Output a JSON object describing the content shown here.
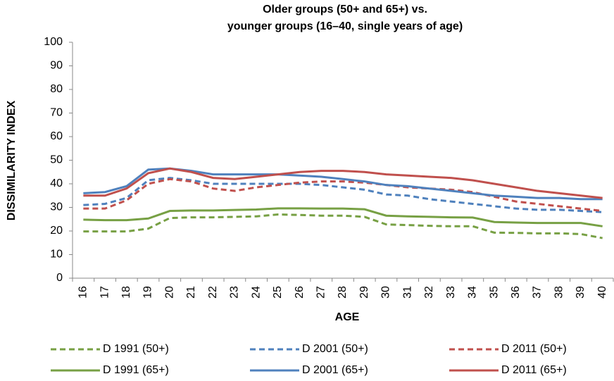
{
  "chart_data": {
    "type": "line",
    "title": [
      "Older groups (50+ and 65+) vs.",
      "younger groups (16–40, single years of age)"
    ],
    "xlabel": "AGE",
    "ylabel": "DISSIMILARITY INDEX",
    "categories": [
      "16",
      "17",
      "18",
      "19",
      "20",
      "21",
      "22",
      "23",
      "24",
      "25",
      "26",
      "27",
      "28",
      "29",
      "30",
      "31",
      "32",
      "33",
      "34",
      "35",
      "36",
      "37",
      "38",
      "39",
      "40"
    ],
    "ylim": [
      0,
      100
    ],
    "yticks": [
      0,
      10,
      20,
      30,
      40,
      50,
      60,
      70,
      80,
      90,
      100
    ],
    "grid": false,
    "series": [
      {
        "name": "D 1991 (50+)",
        "color": "#77a044",
        "dashed": true,
        "values": [
          19.8,
          19.8,
          19.8,
          21,
          25.5,
          25.8,
          25.8,
          26,
          26.2,
          27,
          26.8,
          26.5,
          26.5,
          26,
          22.8,
          22.5,
          22.2,
          22,
          22,
          19.3,
          19.2,
          19,
          19,
          18.7,
          17
        ]
      },
      {
        "name": "D 2001 (50+)",
        "color": "#4f81bd",
        "dashed": true,
        "values": [
          31,
          31.5,
          34,
          41.5,
          42.5,
          41.5,
          40,
          40,
          40,
          40,
          40,
          39.5,
          38.5,
          37.5,
          35.5,
          35,
          33.5,
          32.5,
          31.5,
          30.5,
          29.5,
          29,
          29,
          28.5,
          28
        ]
      },
      {
        "name": "D 2011 (50+)",
        "color": "#c0504d",
        "dashed": true,
        "values": [
          29.5,
          29.5,
          33,
          40,
          42,
          41,
          38,
          37,
          38.5,
          39.5,
          40.5,
          41,
          41,
          40.5,
          39.5,
          38.5,
          38,
          37.5,
          36.5,
          34.5,
          32.5,
          31.5,
          30.5,
          29.5,
          28.5
        ]
      },
      {
        "name": "D 1991 (65+)",
        "color": "#77a044",
        "dashed": false,
        "values": [
          24.8,
          24.6,
          24.6,
          25.3,
          28.5,
          28.7,
          28.7,
          28.9,
          29.1,
          29.6,
          29.6,
          29.5,
          29.5,
          29.2,
          26.5,
          26.2,
          26,
          25.8,
          25.7,
          23.8,
          23.6,
          23.4,
          23.4,
          23.4,
          22
        ]
      },
      {
        "name": "D 2001 (65+)",
        "color": "#4f81bd",
        "dashed": false,
        "values": [
          36,
          36.5,
          39,
          46,
          46.5,
          45.5,
          44,
          44,
          44,
          44,
          43.5,
          43,
          42,
          41,
          39.5,
          39,
          38,
          37,
          36,
          35,
          34.5,
          34,
          34,
          33.5,
          33.5
        ]
      },
      {
        "name": "D 2011 (65+)",
        "color": "#c0504d",
        "dashed": false,
        "values": [
          35,
          35,
          38,
          44.5,
          46.5,
          45,
          42.5,
          42,
          43,
          44,
          45,
          45.5,
          45.5,
          45,
          44,
          43.5,
          43,
          42.5,
          41.5,
          40,
          38.5,
          37,
          36,
          35,
          34
        ]
      }
    ]
  }
}
